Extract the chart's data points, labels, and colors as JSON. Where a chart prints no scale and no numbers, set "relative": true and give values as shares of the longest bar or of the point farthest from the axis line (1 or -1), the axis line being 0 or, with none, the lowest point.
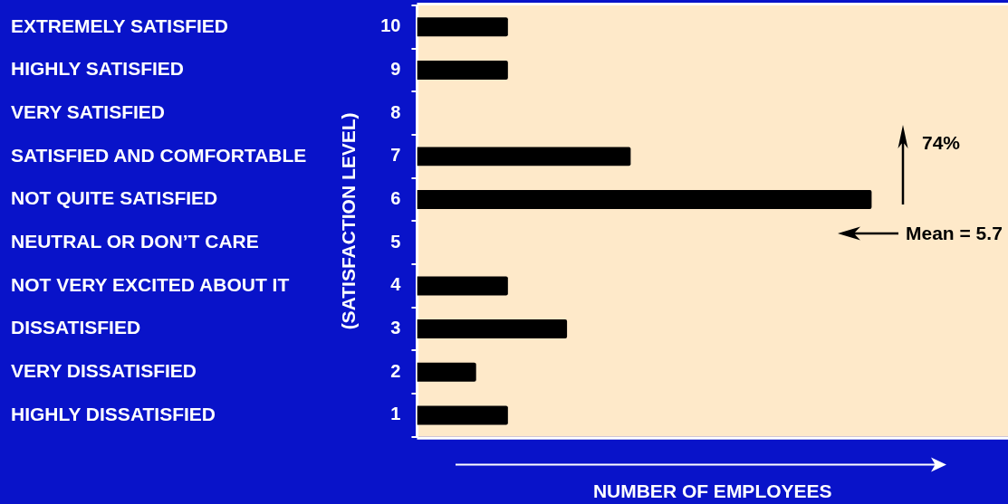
{
  "chart_data": {
    "type": "bar",
    "orientation": "horizontal",
    "relative": true,
    "categories": [
      "10",
      "9",
      "8",
      "7",
      "6",
      "5",
      "4",
      "3",
      "2",
      "1"
    ],
    "values": [
      0.2,
      0.2,
      0,
      0.47,
      1,
      0,
      0.2,
      0.33,
      0.13,
      0.2
    ],
    "color": "#000000",
    "ylabel": "(SATISFACTION LEVEL)",
    "xlabel": "NUMBER OF EMPLOYEES",
    "annotations": [
      "EXTREMELY SATISFIED",
      "HIGHLY SATISFIED",
      "VERY SATISFIED",
      "SATISFIED AND COMFORTABLE",
      "NOT QUITE SATISFIED",
      "NEUTRAL OR DON’T CARE",
      "NOT VERY EXCITED ABOUT IT",
      "DISSATISFIED",
      "VERY DISSATISFIED",
      "HIGHLY DISSATISFIED",
      "74%",
      "Mean = 5.7"
    ]
  }
}
